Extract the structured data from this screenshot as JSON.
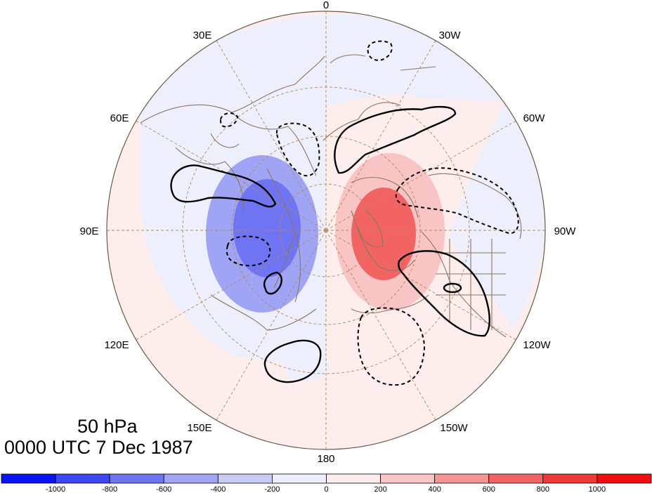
{
  "caption": {
    "level": "50 hPa",
    "time": "0000 UTC 7 Dec 1987"
  },
  "longitude_labels": [
    "0",
    "30W",
    "60W",
    "90W",
    "120W",
    "150W",
    "180",
    "150E",
    "120E",
    "90E",
    "60E",
    "30E"
  ],
  "colorbar": {
    "tick_labels": [
      "-1000",
      "-800",
      "-600",
      "-400",
      "-200",
      "0",
      "200",
      "400",
      "600",
      "800",
      "1000"
    ],
    "colors": [
      "#0a14f0",
      "#3c46f2",
      "#6e74f2",
      "#a0a4f4",
      "#c9cbf7",
      "#eeeffc",
      "#fdeeed",
      "#f8c4c4",
      "#f49494",
      "#f26464",
      "#ef3a3a",
      "#ee1010"
    ]
  },
  "field": {
    "negative_fill_colors": [
      "#eeeffc",
      "#c9cbf7",
      "#a0a4f4",
      "#6e74f2"
    ],
    "positive_fill_colors": [
      "#fdeeed",
      "#f8c4c4",
      "#f49494",
      "#f26464"
    ],
    "land_outline_color": "#8c7460",
    "graticule_color": "#b08a60"
  }
}
